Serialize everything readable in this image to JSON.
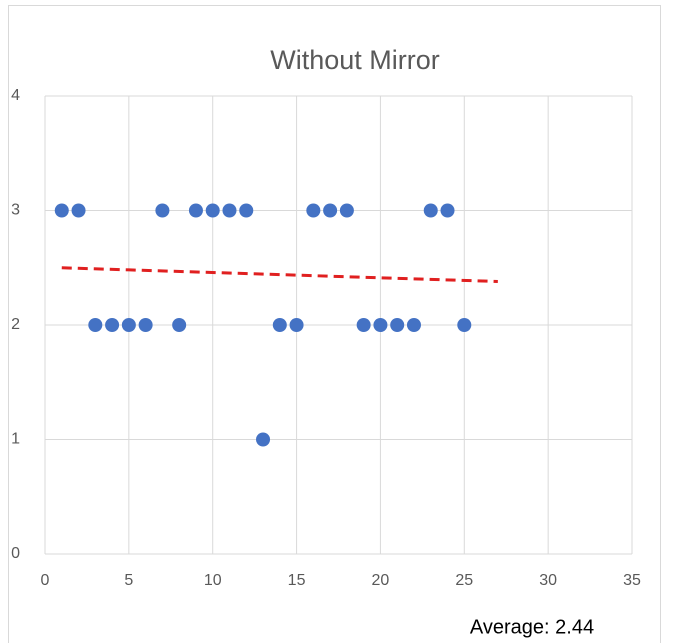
{
  "chart_data": {
    "type": "scatter",
    "title": "Without Mirror",
    "series": [
      {
        "color": "#4472c4",
        "x": [
          1,
          2,
          3,
          4,
          5,
          6,
          7,
          8,
          9,
          10,
          11,
          12,
          13,
          14,
          15,
          16,
          17,
          18,
          19,
          20,
          21,
          22,
          23,
          24,
          25
        ],
        "values": [
          3,
          3,
          2,
          2,
          2,
          2,
          3,
          2,
          3,
          3,
          3,
          3,
          1,
          2,
          2,
          3,
          3,
          3,
          2,
          2,
          2,
          2,
          3,
          3,
          2
        ]
      }
    ],
    "trendline": {
      "color": "#e02020",
      "x": [
        1,
        27
      ],
      "values": [
        2.5,
        2.38
      ]
    },
    "xlim": [
      0,
      35
    ],
    "xticks": [
      0,
      5,
      10,
      15,
      20,
      25,
      30,
      35
    ],
    "ylim": [
      0,
      4
    ],
    "yticks": [
      0,
      1,
      2,
      3,
      4
    ],
    "grid": true,
    "annotation": "Average: 2.44"
  }
}
